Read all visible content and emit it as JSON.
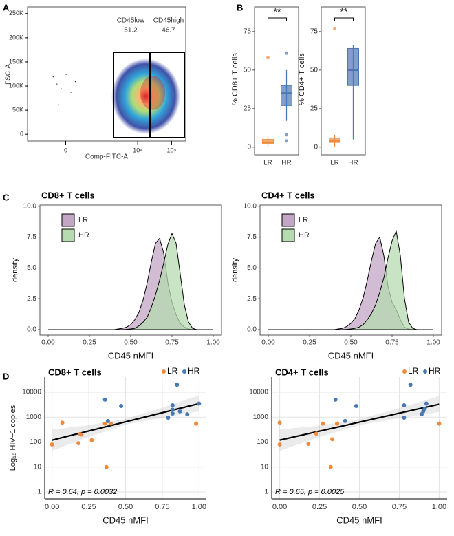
{
  "chart_data": [
    {
      "type": "flow",
      "panel": "A",
      "xlabel": "Comp-FITC-A",
      "ylabel": "FSC-A",
      "xscale": "logicle",
      "xlim": [
        -1000,
        262144
      ],
      "xticks": [
        0,
        {
          "value": 10000,
          "label": "10⁴"
        },
        {
          "value": 100000,
          "label": "10⁵"
        }
      ],
      "ylim": [
        -14000,
        264000
      ],
      "yticks": [
        0,
        {
          "value": 50000,
          "label": "50K"
        },
        {
          "value": 100000,
          "label": "100K"
        },
        {
          "value": 150000,
          "label": "150K"
        },
        {
          "value": 200000,
          "label": "200K"
        },
        {
          "value": 250000,
          "label": "250K"
        }
      ],
      "gates": [
        {
          "name": "CD45low",
          "percent": 51.2
        },
        {
          "name": "CD45high",
          "percent": 46.7
        }
      ],
      "points": {
        "x": [
          -200,
          -150,
          -100,
          -50,
          0,
          50,
          100,
          -80
        ],
        "y": [
          130000,
          120000,
          105000,
          95000,
          125000,
          88000,
          110000,
          62000
        ]
      }
    },
    {
      "type": "box",
      "panel": "B",
      "ylabel": "% CD8+ T cells",
      "annotation": "**",
      "categories": [
        "LR",
        "HR"
      ],
      "colors": [
        "#f08a3c",
        "#4a78b5"
      ],
      "ylim": [
        -5,
        91
      ],
      "yticks": [
        0,
        25,
        50,
        75
      ],
      "boxes": [
        {
          "whisker_low": 0,
          "q1": 2,
          "median": 3,
          "q3": 5,
          "whisker_high": 7,
          "outliers": [
            58
          ]
        },
        {
          "whisker_low": 17,
          "q1": 27,
          "median": 35,
          "q3": 40,
          "whisker_high": 50,
          "outliers": [
            61,
            8,
            4
          ]
        }
      ]
    },
    {
      "type": "box",
      "ylabel": "% CD4+ T cells",
      "annotation": "**",
      "categories": [
        "LR",
        "HR"
      ],
      "colors": [
        "#f08a3c",
        "#4a78b5"
      ],
      "ylim": [
        -5,
        91
      ],
      "yticks": [
        0,
        25,
        50,
        75
      ],
      "boxes": [
        {
          "whisker_low": 0,
          "q1": 3,
          "median": 4,
          "q3": 6,
          "whisker_high": 8,
          "outliers": [
            77
          ]
        },
        {
          "whisker_low": 5,
          "q1": 40,
          "median": 50,
          "q3": 64,
          "whisker_high": 66,
          "outliers": []
        }
      ]
    },
    {
      "type": "density",
      "panel": "C",
      "title": "CD8+ T cells",
      "xlabel": "CD45 nMFI",
      "ylabel": "density",
      "legend": "top-left",
      "xlim": [
        -0.05,
        1.05
      ],
      "xticks": [
        {
          "value": 0,
          "label": "0.00"
        },
        {
          "value": 0.25,
          "label": "0.25"
        },
        {
          "value": 0.5,
          "label": "0.50"
        },
        {
          "value": 0.75,
          "label": "0.75"
        },
        {
          "value": 1,
          "label": "1.00"
        }
      ],
      "ylim": [
        -0.45,
        10.1
      ],
      "yticks": [
        {
          "value": 0,
          "label": "0.0"
        },
        2.5,
        {
          "value": 5,
          "label": "5.0"
        },
        7.5,
        {
          "value": 10,
          "label": "10.0"
        }
      ],
      "x": [
        0,
        0.4,
        0.425,
        0.45,
        0.475,
        0.5,
        0.525,
        0.55,
        0.575,
        0.6,
        0.625,
        0.65,
        0.675,
        0.7,
        0.725,
        0.75,
        0.775,
        0.8,
        0.825,
        0.85,
        0.875,
        0.9,
        1
      ],
      "series": [
        {
          "name": "LR",
          "color": "#c3a5c6",
          "values": [
            0,
            0,
            0.05,
            0.1,
            0.2,
            0.4,
            0.8,
            1.4,
            2.4,
            3.8,
            5.5,
            7.0,
            7.4,
            6.2,
            3.8,
            2.2,
            1.2,
            0.5,
            0.2,
            0.05,
            0,
            0,
            0
          ]
        },
        {
          "name": "HR",
          "color": "#b6dbb0",
          "values": [
            0,
            0,
            0,
            0,
            0.02,
            0.05,
            0.1,
            0.3,
            0.6,
            1.0,
            1.8,
            2.8,
            4.0,
            5.4,
            6.9,
            7.8,
            7.0,
            4.5,
            2.0,
            0.6,
            0.1,
            0,
            0
          ]
        }
      ]
    },
    {
      "type": "density",
      "title": "CD4+ T cells",
      "xlabel": "CD45 nMFI",
      "ylabel": "density",
      "legend": "top-left",
      "xlim": [
        -0.05,
        1.05
      ],
      "xticks": [
        {
          "value": 0,
          "label": "0.00"
        },
        {
          "value": 0.25,
          "label": "0.25"
        },
        {
          "value": 0.5,
          "label": "0.50"
        },
        {
          "value": 0.75,
          "label": "0.75"
        },
        {
          "value": 1,
          "label": "1.00"
        }
      ],
      "ylim": [
        -0.45,
        10.1
      ],
      "yticks": [
        {
          "value": 0,
          "label": "0.0"
        },
        2.5,
        {
          "value": 5,
          "label": "5.0"
        },
        7.5,
        {
          "value": 10,
          "label": "10.0"
        }
      ],
      "x": [
        0,
        0.4,
        0.425,
        0.45,
        0.475,
        0.5,
        0.525,
        0.55,
        0.575,
        0.6,
        0.625,
        0.65,
        0.675,
        0.7,
        0.725,
        0.75,
        0.775,
        0.8,
        0.825,
        0.85,
        0.875,
        0.9,
        1
      ],
      "series": [
        {
          "name": "LR",
          "color": "#c3a5c6",
          "values": [
            0,
            0,
            0.05,
            0.1,
            0.25,
            0.5,
            0.9,
            1.6,
            2.6,
            4.0,
            5.6,
            7.0,
            7.5,
            6.0,
            3.5,
            2.2,
            1.6,
            0.8,
            0.2,
            0.05,
            0,
            0,
            0
          ]
        },
        {
          "name": "HR",
          "color": "#b6dbb0",
          "values": [
            0,
            0,
            0,
            0,
            0.02,
            0.05,
            0.1,
            0.2,
            0.4,
            0.8,
            1.3,
            2.0,
            3.0,
            4.2,
            5.8,
            7.2,
            8.0,
            6.0,
            2.5,
            0.6,
            0.1,
            0,
            0
          ]
        }
      ]
    },
    {
      "type": "scatter",
      "panel": "D",
      "title": "CD8+ T cells",
      "xlabel": "CD45 nMFI",
      "ylabel": "Log₁₀ HIV−1 copies",
      "legend": "top-right",
      "grid": true,
      "ylog": true,
      "annotation": "R = 0.64, p = 0.0032",
      "xlim": [
        -0.05,
        1.05
      ],
      "xticks": [
        {
          "value": 0,
          "label": "0.00"
        },
        {
          "value": 0.25,
          "label": "0.25"
        },
        {
          "value": 0.5,
          "label": "0.50"
        },
        {
          "value": 0.75,
          "label": "0.75"
        },
        {
          "value": 1,
          "label": "1.00"
        }
      ],
      "ylim": [
        0.53,
        40450
      ],
      "yticks": [
        1,
        10,
        100,
        1000,
        10000
      ],
      "series": [
        {
          "name": "LR",
          "color": "#f08a3c",
          "x": [
            0,
            0.07,
            0.18,
            0.2,
            0.27,
            0.36,
            0.4,
            0.37,
            0.98,
            0.19
          ],
          "y": [
            80,
            600,
            90,
            200,
            120,
            550,
            550,
            10,
            550,
            210
          ]
        },
        {
          "name": "HR",
          "color": "#4a78b5",
          "x": [
            0.36,
            0.38,
            0.47,
            0.79,
            0.82,
            0.82,
            0.85,
            0.87,
            0.92,
            1.0,
            0.82
          ],
          "y": [
            5000,
            700,
            2800,
            950,
            3000,
            2000,
            20000,
            1700,
            1300,
            3500,
            1400
          ]
        }
      ],
      "fit": {
        "x": [
          0,
          1
        ],
        "y": [
          120,
          3500
        ]
      },
      "band": {
        "x": [
          0,
          0.25,
          0.5,
          0.75,
          1
        ],
        "lower": [
          45,
          160,
          500,
          950,
          1700
        ],
        "upper": [
          320,
          480,
          850,
          2400,
          7500
        ]
      }
    },
    {
      "type": "scatter",
      "title": "CD4+ T cells",
      "xlabel": "CD45 nMFI",
      "legend": "top-right",
      "grid": true,
      "ylog": true,
      "annotation": "R = 0.65, p = 0.0025",
      "xlim": [
        -0.05,
        1.05
      ],
      "xticks": [
        {
          "value": 0,
          "label": "0.00"
        },
        {
          "value": 0.25,
          "label": "0.25"
        },
        {
          "value": 0.5,
          "label": "0.50"
        },
        {
          "value": 0.75,
          "label": "0.75"
        },
        {
          "value": 1,
          "label": "1.00"
        }
      ],
      "ylim": [
        0.53,
        40450
      ],
      "yticks": [
        1,
        10,
        100,
        1000,
        10000
      ],
      "series": [
        {
          "name": "LR",
          "color": "#f08a3c",
          "x": [
            0,
            0,
            0.18,
            0.23,
            0.27,
            0.32,
            0.33,
            0.36,
            1.0
          ],
          "y": [
            600,
            80,
            85,
            220,
            550,
            10,
            130,
            550,
            550
          ]
        },
        {
          "name": "HR",
          "color": "#4a78b5",
          "x": [
            0.35,
            0.41,
            0.48,
            0.78,
            0.78,
            0.82,
            0.89,
            0.9,
            0.91,
            0.92
          ],
          "y": [
            5000,
            700,
            2800,
            950,
            3000,
            20000,
            1300,
            1700,
            2200,
            3500
          ]
        }
      ],
      "fit": {
        "x": [
          0,
          1
        ],
        "y": [
          120,
          3300
        ]
      },
      "band": {
        "x": [
          0,
          0.25,
          0.5,
          0.75,
          1
        ],
        "lower": [
          45,
          160,
          480,
          900,
          1600
        ],
        "upper": [
          320,
          460,
          820,
          2300,
          7000
        ]
      }
    }
  ]
}
